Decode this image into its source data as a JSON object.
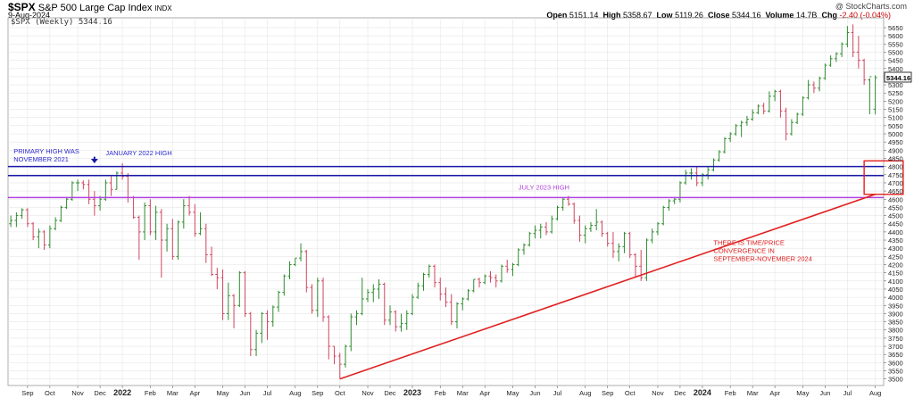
{
  "header": {
    "symbol": "$SPX",
    "name": "S&P 500 Large Cap Index",
    "exchange": "INDX",
    "date": "9-Aug-2024",
    "legend": "$SPX (Weekly) 5344.16",
    "credit": "@ StockCharts.com",
    "open_label": "Open",
    "open": "5151.14",
    "high_label": "High",
    "high": "5358.67",
    "low_label": "Low",
    "low": "5119.26",
    "close_label": "Close",
    "close": "5344.16",
    "volume_label": "Volume",
    "volume": "14.7B",
    "chg_label": "Chg",
    "chg": "-2.40 (-0.04%)"
  },
  "colors": {
    "up": "#2e8b2e",
    "down": "#d0455f",
    "resistance_blue": "#1a1aa8",
    "july_purple": "#b040e0",
    "trend_red": "#e02020",
    "annotation_blue": "#2a2ad0",
    "annotation_purple": "#b040e0",
    "annotation_red": "#e02020",
    "grid": "#e6e6e6"
  },
  "chart_data": {
    "type": "bar",
    "subtype": "ohlc",
    "ylim": [
      3460,
      5710
    ],
    "y_ticks": [
      3500,
      3550,
      3600,
      3650,
      3700,
      3750,
      3800,
      3850,
      3900,
      3950,
      4000,
      4050,
      4100,
      4150,
      4200,
      4250,
      4300,
      4350,
      4400,
      4450,
      4500,
      4550,
      4600,
      4650,
      4700,
      4750,
      4800,
      4850,
      4900,
      4950,
      5000,
      5050,
      5100,
      5150,
      5200,
      5250,
      5300,
      5350,
      5400,
      5450,
      5500,
      5550,
      5600,
      5650
    ],
    "x_labels": [
      {
        "label": "Sep",
        "week": 3,
        "bold": false
      },
      {
        "label": "Oct",
        "week": 7,
        "bold": false
      },
      {
        "label": "Nov",
        "week": 12,
        "bold": false
      },
      {
        "label": "Dec",
        "week": 16,
        "bold": false
      },
      {
        "label": "2022",
        "week": 20,
        "bold": true
      },
      {
        "label": "Feb",
        "week": 25,
        "bold": false
      },
      {
        "label": "Mar",
        "week": 29,
        "bold": false
      },
      {
        "label": "Apr",
        "week": 33,
        "bold": false
      },
      {
        "label": "May",
        "week": 38,
        "bold": false
      },
      {
        "label": "Jun",
        "week": 42,
        "bold": false
      },
      {
        "label": "Jul",
        "week": 46,
        "bold": false
      },
      {
        "label": "Aug",
        "week": 51,
        "bold": false
      },
      {
        "label": "Sep",
        "week": 55,
        "bold": false
      },
      {
        "label": "Oct",
        "week": 59,
        "bold": false
      },
      {
        "label": "Nov",
        "week": 64,
        "bold": false
      },
      {
        "label": "Dec",
        "week": 68,
        "bold": false
      },
      {
        "label": "2023",
        "week": 72,
        "bold": true
      },
      {
        "label": "Feb",
        "week": 77,
        "bold": false
      },
      {
        "label": "Mar",
        "week": 81,
        "bold": false
      },
      {
        "label": "Apr",
        "week": 85,
        "bold": false
      },
      {
        "label": "May",
        "week": 90,
        "bold": false
      },
      {
        "label": "Jun",
        "week": 94,
        "bold": false
      },
      {
        "label": "Jul",
        "week": 98,
        "bold": false
      },
      {
        "label": "Aug",
        "week": 103,
        "bold": false
      },
      {
        "label": "Sep",
        "week": 107,
        "bold": false
      },
      {
        "label": "Oct",
        "week": 111,
        "bold": false
      },
      {
        "label": "Nov",
        "week": 116,
        "bold": false
      },
      {
        "label": "Dec",
        "week": 120,
        "bold": false
      },
      {
        "label": "2024",
        "week": 124,
        "bold": true
      },
      {
        "label": "Feb",
        "week": 129,
        "bold": false
      },
      {
        "label": "Mar",
        "week": 133,
        "bold": false
      },
      {
        "label": "Apr",
        "week": 137,
        "bold": false
      },
      {
        "label": "May",
        "week": 142,
        "bold": false
      },
      {
        "label": "Jun",
        "week": 146,
        "bold": false
      },
      {
        "label": "Jul",
        "week": 150,
        "bold": false
      },
      {
        "label": "Aug",
        "week": 155,
        "bold": false
      }
    ],
    "weeks_total": 156,
    "x_range": [
      -0.5,
      156.5
    ],
    "ohlc": [
      [
        4450,
        4500,
        4430,
        4470
      ],
      [
        4470,
        4520,
        4430,
        4500
      ],
      [
        4500,
        4545,
        4480,
        4535
      ],
      [
        4535,
        4545,
        4430,
        4450
      ],
      [
        4450,
        4460,
        4350,
        4370
      ],
      [
        4370,
        4420,
        4300,
        4400
      ],
      [
        4400,
        4410,
        4290,
        4320
      ],
      [
        4320,
        4440,
        4300,
        4420
      ],
      [
        4420,
        4490,
        4410,
        4470
      ],
      [
        4470,
        4560,
        4460,
        4550
      ],
      [
        4550,
        4610,
        4540,
        4600
      ],
      [
        4600,
        4710,
        4590,
        4700
      ],
      [
        4700,
        4720,
        4650,
        4700
      ],
      [
        4700,
        4715,
        4660,
        4690
      ],
      [
        4690,
        4720,
        4570,
        4600
      ],
      [
        4600,
        4650,
        4500,
        4560
      ],
      [
        4560,
        4620,
        4530,
        4600
      ],
      [
        4600,
        4720,
        4590,
        4700
      ],
      [
        4700,
        4740,
        4620,
        4660
      ],
      [
        4660,
        4770,
        4660,
        4760
      ],
      [
        4760,
        4820,
        4720,
        4740
      ],
      [
        4740,
        4760,
        4580,
        4610
      ],
      [
        4610,
        4620,
        4480,
        4490
      ],
      [
        4490,
        4500,
        4230,
        4400
      ],
      [
        4400,
        4580,
        4350,
        4560
      ],
      [
        4560,
        4600,
        4380,
        4400
      ],
      [
        4400,
        4560,
        4350,
        4520
      ],
      [
        4520,
        4540,
        4120,
        4350
      ],
      [
        4350,
        4450,
        4280,
        4420
      ],
      [
        4420,
        4480,
        4230,
        4250
      ],
      [
        4250,
        4470,
        4230,
        4460
      ],
      [
        4460,
        4600,
        4420,
        4560
      ],
      [
        4560,
        4620,
        4500,
        4520
      ],
      [
        4520,
        4570,
        4370,
        4390
      ],
      [
        4390,
        4520,
        4380,
        4420
      ],
      [
        4420,
        4450,
        4210,
        4260
      ],
      [
        4260,
        4310,
        4130,
        4140
      ],
      [
        4140,
        4180,
        4050,
        4120
      ],
      [
        4120,
        4170,
        3860,
        3900
      ],
      [
        3900,
        4090,
        3860,
        4010
      ],
      [
        4010,
        4020,
        3810,
        3950
      ],
      [
        3950,
        4160,
        3940,
        4150
      ],
      [
        4150,
        4160,
        3880,
        3900
      ],
      [
        3900,
        3910,
        3640,
        3680
      ],
      [
        3680,
        3800,
        3640,
        3780
      ],
      [
        3780,
        3910,
        3720,
        3900
      ],
      [
        3900,
        3920,
        3740,
        3850
      ],
      [
        3850,
        3950,
        3820,
        3940
      ],
      [
        3940,
        4040,
        3910,
        4030
      ],
      [
        4030,
        4140,
        4010,
        4130
      ],
      [
        4130,
        4220,
        4110,
        4200
      ],
      [
        4200,
        4240,
        4190,
        4240
      ],
      [
        4240,
        4330,
        4220,
        4280
      ],
      [
        4280,
        4290,
        4030,
        4060
      ],
      [
        4060,
        4080,
        3900,
        3920
      ],
      [
        3920,
        4120,
        3880,
        4100
      ],
      [
        4100,
        4120,
        3850,
        3880
      ],
      [
        3880,
        3890,
        3620,
        3700
      ],
      [
        3700,
        3700,
        3590,
        3640
      ],
      [
        3640,
        3660,
        3500,
        3590
      ],
      [
        3590,
        3710,
        3570,
        3700
      ],
      [
        3700,
        3900,
        3670,
        3880
      ],
      [
        3880,
        3920,
        3830,
        3900
      ],
      [
        3900,
        4120,
        3890,
        3990
      ],
      [
        3990,
        4050,
        3970,
        4030
      ],
      [
        4030,
        4080,
        3970,
        4050
      ],
      [
        4050,
        4110,
        3990,
        4080
      ],
      [
        4080,
        4090,
        3830,
        3860
      ],
      [
        3860,
        3950,
        3830,
        3910
      ],
      [
        3910,
        3920,
        3790,
        3820
      ],
      [
        3820,
        3900,
        3790,
        3840
      ],
      [
        3840,
        3920,
        3800,
        3900
      ],
      [
        3900,
        4020,
        3890,
        4000
      ],
      [
        4000,
        4090,
        3990,
        4070
      ],
      [
        4070,
        4150,
        4040,
        4140
      ],
      [
        4140,
        4200,
        4120,
        4190
      ],
      [
        4190,
        4200,
        4060,
        4090
      ],
      [
        4090,
        4120,
        3980,
        4020
      ],
      [
        4020,
        4060,
        3940,
        3970
      ],
      [
        3970,
        4020,
        3830,
        3850
      ],
      [
        3850,
        3970,
        3810,
        3960
      ],
      [
        3960,
        4000,
        3920,
        3990
      ],
      [
        3990,
        4050,
        3980,
        4040
      ],
      [
        4040,
        4110,
        4030,
        4110
      ],
      [
        4110,
        4120,
        4060,
        4090
      ],
      [
        4090,
        4140,
        4080,
        4130
      ],
      [
        4130,
        4160,
        4090,
        4120
      ],
      [
        4120,
        4140,
        4060,
        4100
      ],
      [
        4100,
        4200,
        4090,
        4190
      ],
      [
        4190,
        4230,
        4150,
        4170
      ],
      [
        4170,
        4210,
        4130,
        4200
      ],
      [
        4200,
        4300,
        4190,
        4290
      ],
      [
        4290,
        4330,
        4260,
        4320
      ],
      [
        4320,
        4400,
        4310,
        4390
      ],
      [
        4390,
        4440,
        4360,
        4410
      ],
      [
        4410,
        4450,
        4360,
        4430
      ],
      [
        4430,
        4460,
        4380,
        4400
      ],
      [
        4400,
        4500,
        4390,
        4480
      ],
      [
        4480,
        4560,
        4470,
        4550
      ],
      [
        4550,
        4610,
        4530,
        4600
      ],
      [
        4600,
        4620,
        4560,
        4570
      ],
      [
        4570,
        4580,
        4450,
        4470
      ],
      [
        4470,
        4500,
        4340,
        4380
      ],
      [
        4380,
        4440,
        4330,
        4420
      ],
      [
        4420,
        4460,
        4400,
        4440
      ],
      [
        4440,
        4540,
        4410,
        4460
      ],
      [
        4460,
        4470,
        4370,
        4390
      ],
      [
        4390,
        4400,
        4310,
        4330
      ],
      [
        4330,
        4400,
        4240,
        4280
      ],
      [
        4280,
        4330,
        4220,
        4310
      ],
      [
        4310,
        4400,
        4270,
        4390
      ],
      [
        4390,
        4400,
        4240,
        4260
      ],
      [
        4260,
        4270,
        4120,
        4190
      ],
      [
        4190,
        4290,
        4100,
        4120
      ],
      [
        4120,
        4360,
        4100,
        4350
      ],
      [
        4350,
        4420,
        4330,
        4400
      ],
      [
        4400,
        4460,
        4380,
        4450
      ],
      [
        4450,
        4560,
        4440,
        4550
      ],
      [
        4550,
        4600,
        4530,
        4590
      ],
      [
        4590,
        4610,
        4570,
        4600
      ],
      [
        4600,
        4710,
        4580,
        4700
      ],
      [
        4700,
        4780,
        4690,
        4760
      ],
      [
        4760,
        4790,
        4720,
        4760
      ],
      [
        4760,
        4800,
        4680,
        4700
      ],
      [
        4700,
        4760,
        4680,
        4750
      ],
      [
        4750,
        4800,
        4720,
        4780
      ],
      [
        4780,
        4850,
        4770,
        4840
      ],
      [
        4840,
        4900,
        4830,
        4890
      ],
      [
        4890,
        4980,
        4880,
        4970
      ],
      [
        4970,
        5010,
        4950,
        5000
      ],
      [
        5000,
        5060,
        4990,
        5050
      ],
      [
        5050,
        5080,
        4980,
        5070
      ],
      [
        5070,
        5110,
        5050,
        5090
      ],
      [
        5090,
        5150,
        5080,
        5130
      ],
      [
        5130,
        5180,
        5120,
        5170
      ],
      [
        5170,
        5190,
        5120,
        5140
      ],
      [
        5140,
        5260,
        5130,
        5230
      ],
      [
        5230,
        5270,
        5200,
        5260
      ],
      [
        5260,
        5270,
        5100,
        5140
      ],
      [
        5140,
        5160,
        4960,
        5000
      ],
      [
        5000,
        5090,
        4990,
        5070
      ],
      [
        5070,
        5130,
        5060,
        5120
      ],
      [
        5120,
        5230,
        5110,
        5220
      ],
      [
        5220,
        5330,
        5210,
        5300
      ],
      [
        5300,
        5320,
        5250,
        5280
      ],
      [
        5280,
        5350,
        5260,
        5340
      ],
      [
        5340,
        5430,
        5330,
        5420
      ],
      [
        5420,
        5480,
        5410,
        5460
      ],
      [
        5460,
        5500,
        5440,
        5490
      ],
      [
        5490,
        5560,
        5470,
        5550
      ],
      [
        5550,
        5660,
        5530,
        5620
      ],
      [
        5620,
        5670,
        5470,
        5500
      ],
      [
        5500,
        5600,
        5400,
        5450
      ],
      [
        5450,
        5460,
        5300,
        5330
      ],
      [
        5330,
        5340,
        5120,
        5350
      ],
      [
        5151.14,
        5358.67,
        5119.26,
        5344.16
      ]
    ],
    "levels": [
      {
        "name": "primary-high",
        "value": 4800,
        "color": "#1a1aa8"
      },
      {
        "name": "january-2022-high",
        "value": 4745,
        "color": "#1a1aa8"
      },
      {
        "name": "july-2023-high",
        "value": 4610,
        "color": "#b040e0"
      }
    ],
    "trendline": {
      "from": {
        "week": 59,
        "value": 3500
      },
      "to": {
        "week": 155,
        "value": 4630
      },
      "color": "#e02020"
    },
    "convergence_box": {
      "week_from": 153,
      "week_to": 160,
      "value_from": 4630,
      "value_to": 4835
    },
    "annotations": [
      {
        "id": "primary-high",
        "lines": [
          "PRIMARY HIGH WAS",
          "NOVEMBER 2021"
        ],
        "week": 0.5,
        "value": 4880,
        "color": "#2a2ad0"
      },
      {
        "id": "jan-2022-high",
        "lines": [
          "JANUARY 2022 HIGH"
        ],
        "week": 17,
        "value": 4870,
        "color": "#2a2ad0"
      },
      {
        "id": "july-2023-high",
        "lines": [
          "JULY 2023 HIGH"
        ],
        "week": 91,
        "value": 4660,
        "color": "#b040e0"
      },
      {
        "id": "convergence",
        "lines": [
          "THERE IS TIME/PRICE",
          "CONVERGENCE IN",
          "SEPTEMBER-NOVEMBER 2024"
        ],
        "week": 126,
        "value": 4320,
        "color": "#e02020"
      }
    ],
    "arrow": {
      "week": 15,
      "value_from": 4860,
      "value_to": 4820
    },
    "last_value": {
      "value": 5344.16,
      "label": "5344.16"
    },
    "xlabel": "",
    "ylabel": ""
  }
}
